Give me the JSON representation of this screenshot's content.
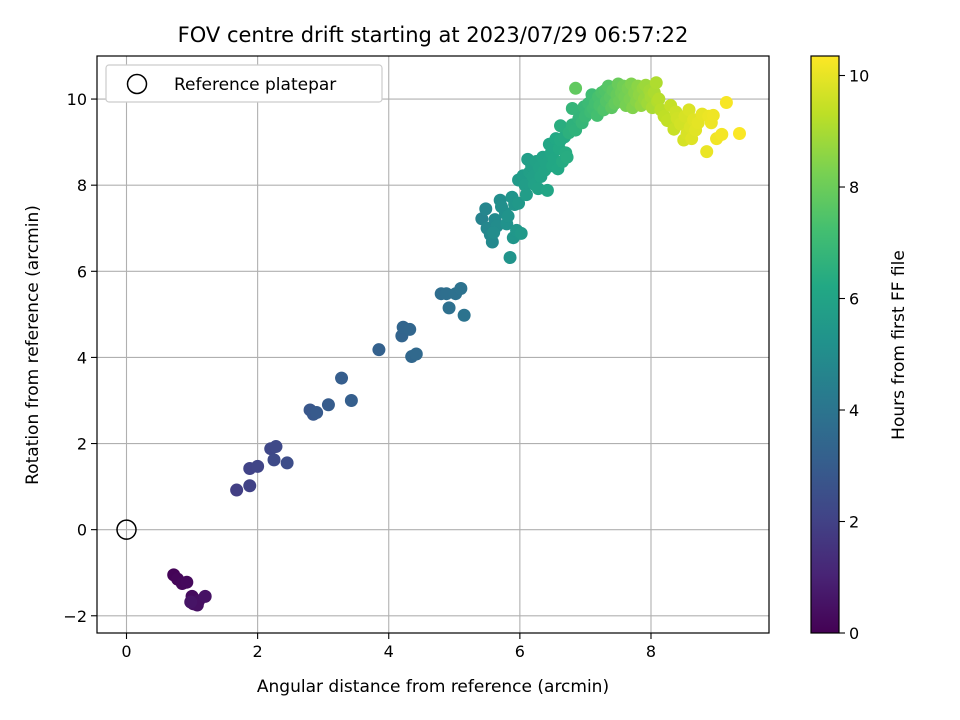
{
  "chart_data": {
    "type": "scatter",
    "title": "FOV centre drift starting at 2023/07/29 06:57:22",
    "xlabel": "Angular distance from reference (arcmin)",
    "ylabel": "Rotation from reference (arcmin)",
    "xlim": [
      -0.45,
      9.8
    ],
    "ylim": [
      -2.4,
      11.0
    ],
    "xticks": [
      "0",
      "2",
      "4",
      "6",
      "8"
    ],
    "yticks": [
      "−2",
      "0",
      "2",
      "4",
      "6",
      "8",
      "10"
    ],
    "grid": true,
    "colormap": "viridis",
    "colorbar": {
      "label": "Hours from first FF file",
      "range": [
        0,
        10.35
      ],
      "ticks": [
        "0",
        "2",
        "4",
        "6",
        "8",
        "10"
      ]
    },
    "legend": {
      "placement": "upper-left",
      "entries": [
        "Reference platepar"
      ]
    },
    "reference_point": {
      "x": 0,
      "y": 0
    },
    "points": [
      [
        0.72,
        -1.05,
        0.1
      ],
      [
        0.78,
        -1.15,
        0.15
      ],
      [
        0.85,
        -1.25,
        0.2
      ],
      [
        0.92,
        -1.22,
        0.25
      ],
      [
        1.0,
        -1.55,
        0.3
      ],
      [
        1.02,
        -1.72,
        0.35
      ],
      [
        1.1,
        -1.65,
        0.4
      ],
      [
        1.08,
        -1.75,
        0.45
      ],
      [
        1.2,
        -1.55,
        0.5
      ],
      [
        0.98,
        -1.68,
        0.55
      ],
      [
        1.68,
        0.92,
        1.9
      ],
      [
        1.88,
        1.02,
        2.0
      ],
      [
        1.88,
        1.42,
        2.05
      ],
      [
        2.0,
        1.47,
        2.1
      ],
      [
        2.2,
        1.88,
        2.2
      ],
      [
        2.28,
        1.93,
        2.25
      ],
      [
        2.25,
        1.62,
        2.3
      ],
      [
        2.45,
        1.55,
        2.4
      ],
      [
        2.8,
        2.78,
        2.8
      ],
      [
        2.85,
        2.68,
        2.85
      ],
      [
        2.9,
        2.72,
        2.9
      ],
      [
        3.08,
        2.9,
        3.0
      ],
      [
        3.28,
        3.52,
        3.05
      ],
      [
        3.43,
        3.0,
        3.1
      ],
      [
        3.85,
        4.18,
        3.2
      ],
      [
        4.2,
        4.5,
        3.3
      ],
      [
        4.22,
        4.7,
        3.35
      ],
      [
        4.32,
        4.65,
        3.4
      ],
      [
        4.35,
        4.02,
        3.45
      ],
      [
        4.42,
        4.08,
        3.5
      ],
      [
        4.8,
        5.48,
        3.7
      ],
      [
        4.88,
        5.48,
        3.75
      ],
      [
        4.92,
        5.15,
        3.8
      ],
      [
        5.02,
        5.48,
        3.85
      ],
      [
        5.1,
        5.6,
        3.9
      ],
      [
        5.15,
        4.98,
        3.95
      ],
      [
        5.42,
        7.22,
        4.6
      ],
      [
        5.48,
        7.45,
        4.7
      ],
      [
        5.5,
        7.0,
        4.75
      ],
      [
        5.55,
        6.85,
        4.8
      ],
      [
        5.58,
        6.68,
        4.85
      ],
      [
        5.62,
        7.2,
        4.9
      ],
      [
        5.65,
        7.05,
        4.95
      ],
      [
        5.6,
        6.9,
        5.0
      ],
      [
        5.7,
        7.65,
        5.05
      ],
      [
        5.72,
        7.5,
        5.1
      ],
      [
        5.78,
        7.35,
        5.15
      ],
      [
        5.8,
        7.1,
        5.2
      ],
      [
        5.82,
        7.28,
        5.25
      ],
      [
        5.85,
        6.32,
        5.3
      ],
      [
        5.88,
        7.72,
        5.35
      ],
      [
        5.9,
        6.78,
        5.4
      ],
      [
        5.92,
        7.55,
        5.42
      ],
      [
        5.95,
        6.95,
        5.45
      ],
      [
        5.98,
        7.58,
        5.5
      ],
      [
        6.02,
        6.88,
        5.55
      ],
      [
        5.98,
        8.12,
        5.6
      ],
      [
        6.05,
        8.22,
        5.65
      ],
      [
        6.08,
        8.0,
        5.7
      ],
      [
        6.1,
        7.78,
        5.72
      ],
      [
        6.12,
        8.6,
        5.75
      ],
      [
        6.15,
        8.3,
        5.8
      ],
      [
        6.18,
        8.45,
        5.82
      ],
      [
        6.2,
        8.2,
        5.85
      ],
      [
        6.22,
        8.02,
        5.88
      ],
      [
        6.25,
        8.55,
        5.9
      ],
      [
        6.28,
        7.92,
        5.92
      ],
      [
        6.3,
        8.4,
        5.95
      ],
      [
        6.32,
        8.2,
        5.98
      ],
      [
        6.35,
        8.65,
        6.0
      ],
      [
        6.38,
        8.35,
        6.02
      ],
      [
        6.4,
        8.5,
        6.05
      ],
      [
        6.42,
        7.88,
        6.08
      ],
      [
        6.45,
        8.95,
        6.1
      ],
      [
        6.48,
        8.75,
        6.12
      ],
      [
        6.5,
        8.45,
        6.15
      ],
      [
        6.52,
        8.6,
        6.18
      ],
      [
        6.55,
        9.08,
        6.2
      ],
      [
        6.58,
        8.38,
        6.22
      ],
      [
        6.6,
        8.85,
        6.25
      ],
      [
        6.62,
        9.05,
        6.28
      ],
      [
        6.65,
        8.55,
        6.3
      ],
      [
        6.68,
        9.12,
        6.32
      ],
      [
        6.7,
        8.75,
        6.35
      ],
      [
        6.72,
        8.65,
        6.38
      ],
      [
        6.62,
        9.38,
        6.45
      ],
      [
        6.75,
        9.22,
        6.55
      ],
      [
        6.8,
        9.4,
        6.6
      ],
      [
        6.85,
        9.28,
        6.65
      ],
      [
        6.9,
        9.55,
        6.7
      ],
      [
        6.92,
        9.65,
        6.75
      ],
      [
        6.8,
        9.78,
        6.8
      ],
      [
        6.95,
        9.45,
        6.85
      ],
      [
        6.98,
        9.82,
        6.9
      ],
      [
        7.0,
        9.6,
        6.95
      ],
      [
        7.05,
        9.9,
        7.0
      ],
      [
        7.08,
        9.7,
        7.05
      ],
      [
        7.1,
        10.1,
        7.1
      ],
      [
        7.12,
        9.78,
        7.15
      ],
      [
        7.15,
        9.9,
        7.2
      ],
      [
        7.18,
        9.62,
        7.25
      ],
      [
        7.2,
        10.05,
        7.3
      ],
      [
        7.22,
        9.85,
        7.35
      ],
      [
        7.25,
        10.15,
        7.4
      ],
      [
        7.28,
        9.75,
        7.45
      ],
      [
        7.3,
        10.2,
        7.5
      ],
      [
        7.32,
        9.95,
        7.55
      ],
      [
        7.35,
        10.3,
        7.6
      ],
      [
        7.38,
        10.05,
        7.65
      ],
      [
        7.4,
        9.8,
        7.7
      ],
      [
        7.42,
        10.2,
        7.75
      ],
      [
        6.85,
        10.25,
        7.8
      ],
      [
        7.45,
        9.9,
        7.85
      ],
      [
        7.48,
        10.1,
        7.9
      ],
      [
        7.5,
        10.35,
        7.95
      ],
      [
        7.52,
        9.95,
        8.0
      ],
      [
        7.55,
        10.15,
        8.05
      ],
      [
        7.58,
        10.3,
        8.1
      ],
      [
        7.6,
        10.05,
        8.15
      ],
      [
        7.62,
        9.85,
        8.2
      ],
      [
        7.65,
        10.25,
        8.25
      ],
      [
        7.68,
        10.0,
        8.3
      ],
      [
        7.7,
        10.35,
        8.35
      ],
      [
        7.72,
        9.8,
        8.4
      ],
      [
        7.75,
        10.15,
        8.45
      ],
      [
        7.78,
        9.95,
        8.5
      ],
      [
        7.8,
        10.3,
        8.55
      ],
      [
        7.82,
        10.1,
        8.6
      ],
      [
        7.85,
        9.85,
        8.65
      ],
      [
        7.88,
        10.25,
        8.7
      ],
      [
        7.9,
        10.0,
        8.75
      ],
      [
        7.92,
        10.32,
        8.8
      ],
      [
        7.95,
        9.9,
        8.85
      ],
      [
        7.98,
        10.2,
        8.9
      ],
      [
        8.0,
        10.05,
        8.95
      ],
      [
        8.02,
        9.8,
        9.0
      ],
      [
        8.05,
        10.15,
        9.05
      ],
      [
        8.08,
        10.38,
        9.1
      ],
      [
        8.1,
        9.95,
        9.15
      ],
      [
        8.12,
        10.0,
        9.2
      ],
      [
        8.15,
        9.75,
        9.25
      ],
      [
        8.2,
        9.6,
        9.35
      ],
      [
        8.25,
        9.5,
        9.4
      ],
      [
        8.3,
        9.85,
        9.45
      ],
      [
        8.35,
        9.3,
        9.5
      ],
      [
        8.38,
        9.7,
        9.55
      ],
      [
        8.4,
        9.55,
        9.6
      ],
      [
        8.45,
        9.42,
        9.65
      ],
      [
        8.5,
        9.05,
        9.7
      ],
      [
        8.52,
        9.6,
        9.72
      ],
      [
        8.55,
        9.2,
        9.75
      ],
      [
        8.58,
        9.75,
        9.78
      ],
      [
        8.6,
        9.35,
        9.8
      ],
      [
        8.62,
        9.08,
        9.85
      ],
      [
        8.65,
        9.52,
        9.88
      ],
      [
        8.68,
        9.28,
        9.9
      ],
      [
        8.72,
        9.45,
        9.95
      ],
      [
        8.78,
        9.65,
        10.0
      ],
      [
        8.85,
        8.78,
        10.05
      ],
      [
        8.88,
        9.6,
        10.08
      ],
      [
        8.92,
        9.45,
        10.1
      ],
      [
        8.95,
        9.62,
        10.12
      ],
      [
        9.0,
        9.08,
        10.15
      ],
      [
        9.08,
        9.18,
        10.2
      ],
      [
        9.15,
        9.92,
        10.25
      ],
      [
        9.35,
        9.2,
        10.3
      ]
    ]
  }
}
